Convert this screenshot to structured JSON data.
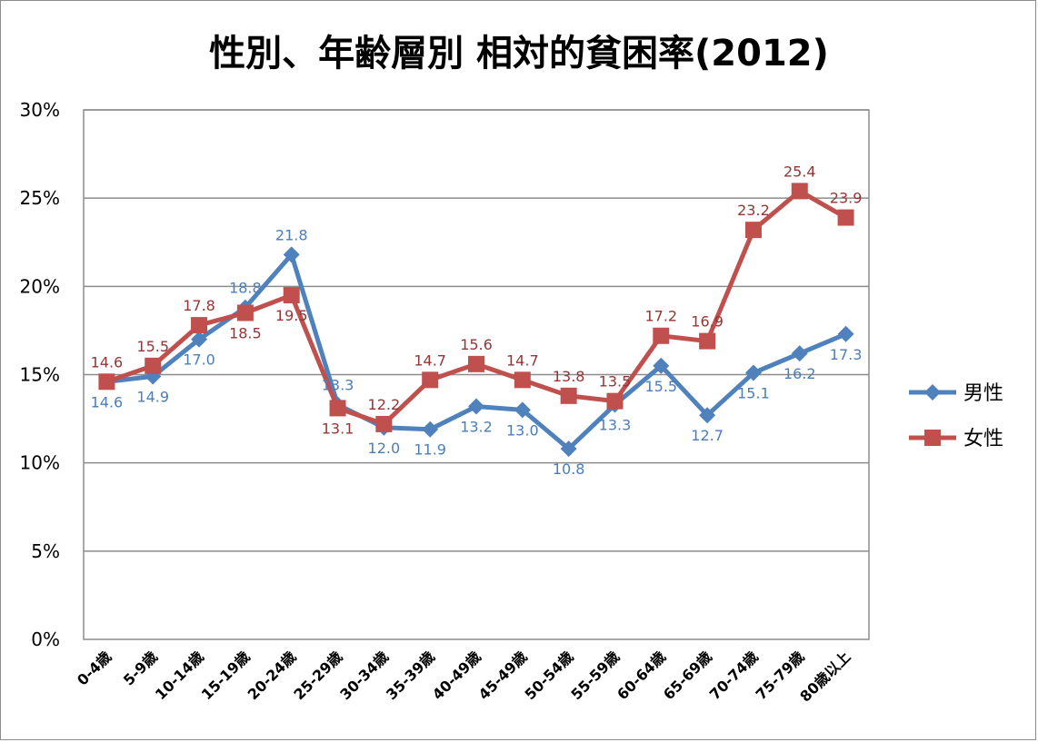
{
  "chart_data": {
    "type": "line",
    "title": "性別、年齢層別 相対的貧困率(2012)",
    "categories": [
      "0-4歳",
      "5-9歳",
      "10-14歳",
      "15-19歳",
      "20-24歳",
      "25-29歳",
      "30-34歳",
      "35-39歳",
      "40-49歳",
      "45-49歳",
      "50-54歳",
      "55-59歳",
      "60-64歳",
      "65-69歳",
      "70-74歳",
      "75-79歳",
      "80歳以上"
    ],
    "y_ticks": [
      "0%",
      "5%",
      "10%",
      "15%",
      "20%",
      "25%",
      "30%"
    ],
    "ylim": [
      0,
      30
    ],
    "grid": true,
    "legend_position": "right",
    "series": [
      {
        "name": "男性",
        "color": "#4f81bd",
        "label_color": "#4a7ebb",
        "marker": "diamond",
        "values": [
          14.6,
          14.9,
          17.0,
          18.8,
          21.8,
          13.3,
          12.0,
          11.9,
          13.2,
          13.0,
          10.8,
          13.3,
          15.5,
          12.7,
          15.1,
          16.2,
          17.3
        ],
        "labels": [
          "14.6",
          "14.9",
          "17.0",
          "18.8",
          "21.8",
          "13.3",
          "12.0",
          "11.9",
          "13.2",
          "13.0",
          "10.8",
          "13.3",
          "15.5",
          "12.7",
          "15.1",
          "16.2",
          "17.3"
        ]
      },
      {
        "name": "女性",
        "color": "#c0504d",
        "label_color": "#943634",
        "marker": "square",
        "values": [
          14.6,
          15.5,
          17.8,
          18.5,
          19.5,
          13.1,
          12.2,
          14.7,
          15.6,
          14.7,
          13.8,
          13.5,
          17.2,
          16.9,
          23.2,
          25.4,
          23.9
        ],
        "labels": [
          "14.6",
          "15.5",
          "17.8",
          "18.5",
          "19.5",
          "13.1",
          "12.2",
          "14.7",
          "15.6",
          "14.7",
          "13.8",
          "13.5",
          "17.2",
          "16.9",
          "23.2",
          "25.4",
          "23.9"
        ]
      }
    ]
  }
}
